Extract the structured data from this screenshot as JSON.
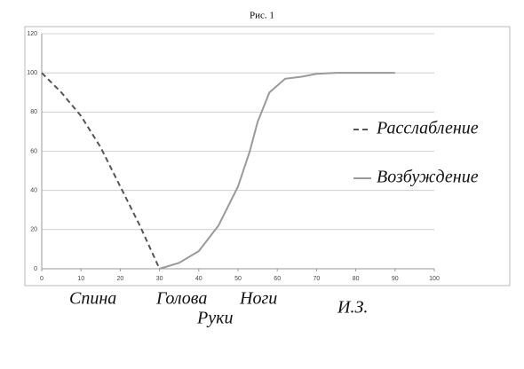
{
  "chart_data": {
    "type": "line",
    "title": "Рис. 1",
    "series": [
      {
        "name": "Расслабление",
        "color": "#555555",
        "dash": true,
        "x": [
          0,
          5,
          10,
          15,
          20,
          25,
          30
        ],
        "values": [
          100,
          90,
          78,
          62,
          42,
          22,
          0
        ]
      },
      {
        "name": "Возбуждение",
        "color": "#9a9a9a",
        "dash": false,
        "x": [
          30,
          35,
          40,
          45,
          50,
          53,
          55,
          58,
          62,
          66,
          70,
          75,
          80,
          90
        ],
        "values": [
          0,
          3,
          9,
          22,
          42,
          60,
          75,
          90,
          97,
          98,
          99.5,
          100,
          100,
          100
        ]
      }
    ],
    "xlim": [
      0,
      100
    ],
    "xticks": [
      0,
      10,
      20,
      30,
      40,
      50,
      60,
      70,
      80,
      90,
      100
    ],
    "ylim": [
      0,
      120
    ],
    "yticks": [
      0,
      20,
      40,
      60,
      80,
      100,
      120
    ],
    "grid": true,
    "legend": "right",
    "annotations": [
      "Спина",
      "Голова",
      "Руки",
      "Ноги",
      "И.З."
    ]
  }
}
